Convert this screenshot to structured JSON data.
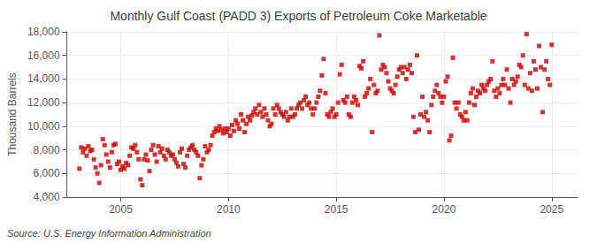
{
  "chart_data": {
    "type": "scatter",
    "title": "Monthly Gulf Coast (PADD 3) Exports of Petroleum Coke Marketable",
    "ylabel": "Thousand Barrels",
    "source": "Source: U.S. Energy Information Administration",
    "color": "#cc0000",
    "marker": "square",
    "grid": true,
    "xlim": [
      2002.5,
      2026.2
    ],
    "xticks": [
      2005,
      2010,
      2015,
      2020,
      2025
    ],
    "ylim": [
      4000,
      18000
    ],
    "yticks": [
      {
        "value": 4000,
        "label": "4,000"
      },
      {
        "value": 6000,
        "label": "6,000"
      },
      {
        "value": 8000,
        "label": "8,000"
      },
      {
        "value": 10000,
        "label": "10,000"
      },
      {
        "value": 12000,
        "label": "12,000"
      },
      {
        "value": 14000,
        "label": "14,000"
      },
      {
        "value": 16000,
        "label": "16,000"
      },
      {
        "value": 18000,
        "label": "18,000"
      }
    ],
    "x": [
      2003.083,
      2003.167,
      2003.25,
      2003.333,
      2003.417,
      2003.5,
      2003.583,
      2003.667,
      2003.75,
      2003.833,
      2003.917,
      2004.0,
      2004.083,
      2004.167,
      2004.25,
      2004.333,
      2004.417,
      2004.5,
      2004.583,
      2004.667,
      2004.75,
      2004.833,
      2004.917,
      2005.0,
      2005.083,
      2005.167,
      2005.25,
      2005.333,
      2005.417,
      2005.5,
      2005.583,
      2005.667,
      2005.75,
      2005.833,
      2005.917,
      2006.0,
      2006.083,
      2006.167,
      2006.25,
      2006.333,
      2006.417,
      2006.5,
      2006.583,
      2006.667,
      2006.75,
      2006.833,
      2006.917,
      2007.0,
      2007.083,
      2007.167,
      2007.25,
      2007.333,
      2007.417,
      2007.5,
      2007.583,
      2007.667,
      2007.75,
      2007.833,
      2007.917,
      2008.0,
      2008.083,
      2008.167,
      2008.25,
      2008.333,
      2008.417,
      2008.5,
      2008.583,
      2008.667,
      2008.75,
      2008.833,
      2008.917,
      2009.0,
      2009.083,
      2009.167,
      2009.25,
      2009.333,
      2009.417,
      2009.5,
      2009.583,
      2009.667,
      2009.75,
      2009.833,
      2009.917,
      2010.0,
      2010.083,
      2010.167,
      2010.25,
      2010.333,
      2010.417,
      2010.5,
      2010.583,
      2010.667,
      2010.75,
      2010.833,
      2010.917,
      2011.0,
      2011.083,
      2011.167,
      2011.25,
      2011.333,
      2011.417,
      2011.5,
      2011.583,
      2011.667,
      2011.75,
      2011.833,
      2011.917,
      2012.0,
      2012.083,
      2012.167,
      2012.25,
      2012.333,
      2012.417,
      2012.5,
      2012.583,
      2012.667,
      2012.75,
      2012.833,
      2012.917,
      2013.0,
      2013.083,
      2013.167,
      2013.25,
      2013.333,
      2013.417,
      2013.5,
      2013.583,
      2013.667,
      2013.75,
      2013.833,
      2013.917,
      2014.0,
      2014.083,
      2014.167,
      2014.25,
      2014.333,
      2014.417,
      2014.5,
      2014.583,
      2014.667,
      2014.75,
      2014.833,
      2014.917,
      2015.0,
      2015.083,
      2015.167,
      2015.25,
      2015.333,
      2015.417,
      2015.5,
      2015.583,
      2015.667,
      2015.75,
      2015.833,
      2015.917,
      2016.0,
      2016.083,
      2016.167,
      2016.25,
      2016.333,
      2016.417,
      2016.5,
      2016.583,
      2016.667,
      2016.75,
      2016.833,
      2016.917,
      2017.0,
      2017.083,
      2017.167,
      2017.25,
      2017.333,
      2017.417,
      2017.5,
      2017.583,
      2017.667,
      2017.75,
      2017.833,
      2017.917,
      2018.0,
      2018.083,
      2018.167,
      2018.25,
      2018.333,
      2018.417,
      2018.5,
      2018.583,
      2018.667,
      2018.75,
      2018.833,
      2018.917,
      2019.0,
      2019.083,
      2019.167,
      2019.25,
      2019.333,
      2019.417,
      2019.5,
      2019.583,
      2019.667,
      2019.75,
      2019.833,
      2019.917,
      2020.0,
      2020.083,
      2020.167,
      2020.25,
      2020.333,
      2020.417,
      2020.5,
      2020.583,
      2020.667,
      2020.75,
      2020.833,
      2020.917,
      2021.0,
      2021.083,
      2021.167,
      2021.25,
      2021.333,
      2021.417,
      2021.5,
      2021.583,
      2021.667,
      2021.75,
      2021.833,
      2021.917,
      2022.0,
      2022.083,
      2022.167,
      2022.25,
      2022.333,
      2022.417,
      2022.5,
      2022.583,
      2022.667,
      2022.75,
      2022.833,
      2022.917,
      2023.0,
      2023.083,
      2023.167,
      2023.25,
      2023.333,
      2023.417,
      2023.5,
      2023.583,
      2023.667,
      2023.75,
      2023.833,
      2023.917,
      2024.0,
      2024.083,
      2024.167,
      2024.25,
      2024.333,
      2024.417,
      2024.5,
      2024.583,
      2024.667,
      2024.75,
      2024.833,
      2024.917,
      2025.0
    ],
    "values": [
      6400,
      8200,
      7800,
      8100,
      7500,
      8300,
      7900,
      8000,
      7200,
      6500,
      6000,
      5200,
      6700,
      8900,
      8400,
      7600,
      7000,
      6500,
      7800,
      8400,
      8500,
      6800,
      7000,
      6300,
      6600,
      6400,
      6900,
      6700,
      7500,
      8200,
      8100,
      8400,
      7800,
      7200,
      5500,
      5000,
      7200,
      7600,
      7100,
      6200,
      8000,
      8400,
      7600,
      7000,
      8300,
      7800,
      8100,
      7500,
      7200,
      8000,
      7800,
      7500,
      7600,
      7200,
      6900,
      6600,
      7800,
      8100,
      6800,
      6500,
      7500,
      8000,
      8200,
      8400,
      8000,
      7800,
      7500,
      5600,
      6700,
      7200,
      8300,
      7800,
      8000,
      8400,
      9200,
      9500,
      9800,
      9600,
      10000,
      9700,
      9400,
      9800,
      9500,
      9800,
      9200,
      10100,
      9600,
      10500,
      10200,
      9800,
      11000,
      10500,
      9500,
      10200,
      10800,
      10500,
      10900,
      11200,
      11500,
      11000,
      11800,
      11200,
      10800,
      11500,
      11000,
      10500,
      10000,
      10200,
      11500,
      11000,
      11800,
      11500,
      11200,
      11000,
      10800,
      11200,
      10500,
      10800,
      11500,
      10800,
      11000,
      11500,
      11800,
      12000,
      11500,
      12200,
      12500,
      11800,
      12000,
      11500,
      11000,
      11500,
      12000,
      12500,
      13000,
      14300,
      15700,
      12800,
      11000,
      10800,
      11200,
      11500,
      10800,
      11000,
      12000,
      14400,
      15200,
      12200,
      12000,
      12500,
      11000,
      10800,
      12000,
      12500,
      12200,
      11800,
      15100,
      14900,
      15500,
      12500,
      12800,
      13200,
      14000,
      9500,
      13500,
      12800,
      13000,
      17700,
      14800,
      15200,
      15000,
      14500,
      13800,
      13200,
      13000,
      12800,
      13500,
      14200,
      14800,
      15000,
      14500,
      15000,
      14000,
      14800,
      15200,
      14500,
      10800,
      9500,
      16000,
      9700,
      11000,
      12500,
      10800,
      11200,
      10500,
      9500,
      11800,
      12500,
      13000,
      13500,
      12800,
      12500,
      12000,
      12500,
      13800,
      14200,
      8800,
      9200,
      15800,
      12000,
      11500,
      12000,
      11000,
      10800,
      10500,
      11200,
      10500,
      12000,
      12800,
      13200,
      11800,
      12500,
      13000,
      12800,
      13500,
      13200,
      13000,
      13500,
      13800,
      14000,
      15500,
      13000,
      12500,
      13200,
      12800,
      13500,
      14000,
      13500,
      14800,
      13200,
      12000,
      14000,
      13500,
      13800,
      14200,
      15200,
      15000,
      16000,
      13500,
      17800,
      13200,
      14500,
      13000,
      15500,
      14800,
      13200,
      16800,
      15000,
      11200,
      14800,
      15500,
      14000,
      13500,
      16900
    ]
  }
}
